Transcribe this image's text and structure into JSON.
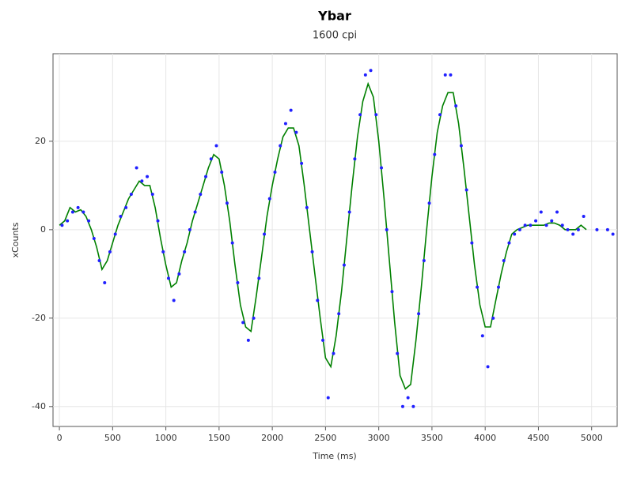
{
  "chart_data": {
    "type": "scatter",
    "title": "Ybar",
    "subtitle": "1600 cpi",
    "x_label": "Time (ms)",
    "y_label": "xCounts",
    "xlim": [
      -60,
      5240
    ],
    "ylim": [
      -44.5,
      39.8
    ],
    "xticks": [
      0,
      500,
      1000,
      1500,
      2000,
      2500,
      3000,
      3500,
      4000,
      4500,
      5000
    ],
    "yticks": [
      -40,
      -20,
      0,
      20
    ],
    "grid": true,
    "series": [
      {
        "type": "line",
        "color": "#008000",
        "x": [
          0,
          50,
          100,
          150,
          200,
          250,
          300,
          350,
          400,
          450,
          500,
          550,
          600,
          650,
          700,
          750,
          800,
          850,
          900,
          950,
          1000,
          1050,
          1100,
          1150,
          1200,
          1250,
          1300,
          1350,
          1400,
          1450,
          1500,
          1550,
          1600,
          1650,
          1700,
          1750,
          1800,
          1850,
          1900,
          1950,
          2000,
          2050,
          2100,
          2150,
          2200,
          2250,
          2300,
          2350,
          2400,
          2450,
          2500,
          2550,
          2600,
          2650,
          2700,
          2750,
          2800,
          2850,
          2900,
          2950,
          3000,
          3050,
          3100,
          3150,
          3200,
          3250,
          3300,
          3350,
          3400,
          3450,
          3500,
          3550,
          3600,
          3650,
          3700,
          3750,
          3800,
          3850,
          3900,
          3950,
          4000,
          4050,
          4100,
          4150,
          4200,
          4250,
          4300,
          4350,
          4400,
          4450,
          4500,
          4550,
          4600,
          4650,
          4700,
          4750,
          4800,
          4850,
          4900,
          4950
        ],
        "values": [
          1,
          2,
          5,
          4,
          4.5,
          3,
          0,
          -4,
          -9,
          -7,
          -3,
          1,
          4,
          7,
          9,
          11,
          10,
          10,
          5,
          -2,
          -8,
          -13,
          -12,
          -7,
          -3,
          2,
          6,
          10,
          14,
          17,
          16,
          10,
          2,
          -8,
          -17,
          -22,
          -23,
          -15,
          -6,
          3,
          10,
          16,
          21,
          23,
          23,
          19,
          10,
          0,
          -10,
          -20,
          -29,
          -31,
          -24,
          -14,
          -2,
          10,
          21,
          29,
          33,
          30,
          20,
          7,
          -7,
          -21,
          -33,
          -36,
          -35,
          -25,
          -13,
          0,
          12,
          22,
          28,
          31,
          31,
          24,
          14,
          3,
          -8,
          -17,
          -22,
          -22,
          -16,
          -10,
          -5,
          -1,
          0,
          0.5,
          1,
          1,
          1,
          1,
          1.5,
          1.5,
          1,
          0,
          0,
          0,
          1,
          0
        ]
      },
      {
        "type": "scatter",
        "color": "#2020ff",
        "x": [
          25,
          75,
          125,
          175,
          225,
          275,
          325,
          375,
          425,
          475,
          525,
          575,
          625,
          675,
          725,
          775,
          825,
          875,
          925,
          975,
          1025,
          1075,
          1125,
          1175,
          1225,
          1275,
          1325,
          1375,
          1425,
          1475,
          1525,
          1575,
          1625,
          1675,
          1725,
          1775,
          1825,
          1875,
          1925,
          1975,
          2025,
          2075,
          2125,
          2175,
          2225,
          2275,
          2325,
          2375,
          2425,
          2475,
          2525,
          2575,
          2625,
          2675,
          2725,
          2775,
          2825,
          2875,
          2925,
          2975,
          3025,
          3075,
          3125,
          3175,
          3225,
          3275,
          3325,
          3375,
          3425,
          3475,
          3525,
          3575,
          3625,
          3675,
          3725,
          3775,
          3825,
          3875,
          3925,
          3975,
          4025,
          4075,
          4125,
          4175,
          4225,
          4275,
          4325,
          4375,
          4425,
          4475,
          4525,
          4575,
          4625,
          4675,
          4725,
          4775,
          4825,
          4875,
          4925,
          5050,
          5150,
          5200
        ],
        "values": [
          1,
          2,
          4,
          5,
          4,
          2,
          -2,
          -7,
          -12,
          -5,
          -1,
          3,
          5,
          8,
          14,
          11,
          12,
          8,
          2,
          -5,
          -11,
          -16,
          -10,
          -5,
          0,
          4,
          8,
          12,
          16,
          19,
          13,
          6,
          -3,
          -12,
          -21,
          -25,
          -20,
          -11,
          -1,
          7,
          13,
          19,
          24,
          27,
          22,
          15,
          5,
          -5,
          -16,
          -25,
          -38,
          -28,
          -19,
          -8,
          4,
          16,
          26,
          35,
          36,
          26,
          14,
          0,
          -14,
          -28,
          -40,
          -38,
          -40,
          -19,
          -7,
          6,
          17,
          26,
          35,
          35,
          28,
          19,
          9,
          -3,
          -13,
          -24,
          -31,
          -20,
          -13,
          -7,
          -3,
          -1,
          0,
          1,
          1,
          2,
          4,
          1,
          2,
          4,
          1,
          0,
          -1,
          0,
          3,
          0,
          0,
          -1
        ]
      }
    ]
  }
}
